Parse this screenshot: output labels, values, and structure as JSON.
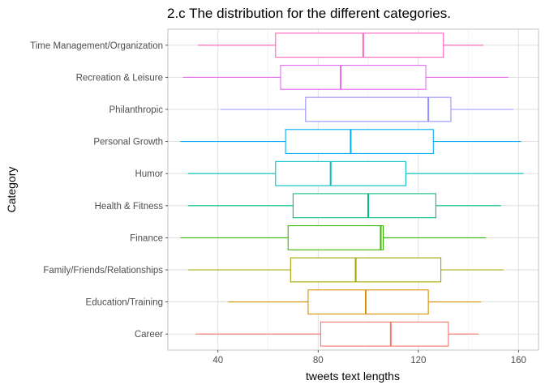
{
  "chart_data": {
    "type": "boxplot",
    "orientation": "horizontal",
    "title": "2.c The distribution for the different categories.",
    "xlabel": "tweets text lengths",
    "ylabel": "Category",
    "xlim": [
      20,
      168
    ],
    "x_ticks": [
      40,
      80,
      120,
      160
    ],
    "x_tick_labels": [
      "40",
      "80",
      "120",
      "160"
    ],
    "grid": true,
    "legend": "none",
    "categories": [
      "Career",
      "Education/Training",
      "Family/Friends/Relationships",
      "Finance",
      "Health & Fitness",
      "Humor",
      "Personal Growth",
      "Philanthropic",
      "Recreation & Leisure",
      "Time Management/Organization"
    ],
    "boxes": [
      {
        "category": "Career",
        "whisker_low": 31,
        "q1": 81,
        "median": 109,
        "q3": 132,
        "whisker_high": 144,
        "color": "#F8766D"
      },
      {
        "category": "Education/Training",
        "whisker_low": 44,
        "q1": 76,
        "median": 99,
        "q3": 124,
        "whisker_high": 145,
        "color": "#D89000"
      },
      {
        "category": "Family/Friends/Relationships",
        "whisker_low": 28,
        "q1": 69,
        "median": 95,
        "q3": 129,
        "whisker_high": 154,
        "color": "#A3A500"
      },
      {
        "category": "Finance",
        "whisker_low": 25,
        "q1": 68,
        "median": 105,
        "q3": 106,
        "whisker_high": 147,
        "color": "#39B600"
      },
      {
        "category": "Health & Fitness",
        "whisker_low": 28,
        "q1": 70,
        "median": 100,
        "q3": 127,
        "whisker_high": 153,
        "color": "#00BF7D"
      },
      {
        "category": "Humor",
        "whisker_low": 28,
        "q1": 63,
        "median": 85,
        "q3": 115,
        "whisker_high": 162,
        "color": "#00BFC4"
      },
      {
        "category": "Personal Growth",
        "whisker_low": 25,
        "q1": 67,
        "median": 93,
        "q3": 126,
        "whisker_high": 161,
        "color": "#00B0F6"
      },
      {
        "category": "Philanthropic",
        "whisker_low": 41,
        "q1": 75,
        "median": 124,
        "q3": 133,
        "whisker_high": 158,
        "color": "#9590FF"
      },
      {
        "category": "Recreation & Leisure",
        "whisker_low": 26,
        "q1": 65,
        "median": 89,
        "q3": 123,
        "whisker_high": 156,
        "color": "#E76BF3"
      },
      {
        "category": "Time Management/Organization",
        "whisker_low": 32,
        "q1": 63,
        "median": 98,
        "q3": 130,
        "whisker_high": 146,
        "color": "#FF62BC"
      }
    ]
  }
}
